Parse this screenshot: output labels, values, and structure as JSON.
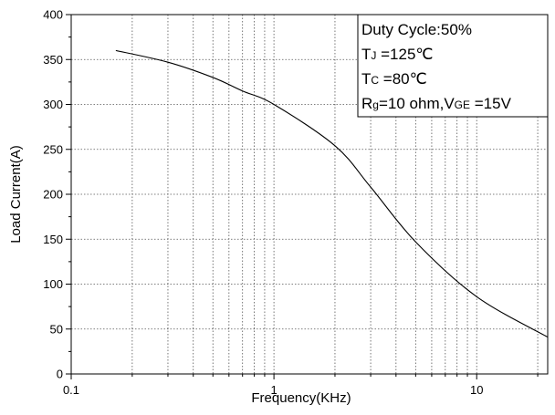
{
  "chart_data": {
    "type": "line",
    "x_label": "Frequency(KHz)",
    "y_label": "Load Current(A)",
    "x": [
      0.166,
      0.3,
      0.5,
      0.7,
      1.0,
      2,
      3,
      5,
      10,
      22.4
    ],
    "series": [
      {
        "color": "#000000",
        "values": [
          360,
          347,
          330,
          315,
          300,
          254,
          208,
          147,
          86,
          41
        ]
      }
    ],
    "xlim": [
      0.1,
      22.4
    ],
    "xscale": "log",
    "xticks": [
      0.1,
      1,
      10
    ],
    "x_minor_ticks": [
      0.2,
      0.3,
      0.4,
      0.5,
      0.6,
      0.7,
      0.8,
      0.9,
      2,
      3,
      4,
      5,
      6,
      7,
      8,
      9,
      20
    ],
    "ylim": [
      0,
      400
    ],
    "yticks": [
      0,
      50,
      100,
      150,
      200,
      250,
      300,
      350,
      400
    ],
    "y_minor_ticks": [
      25,
      75,
      125,
      175,
      225,
      275,
      325,
      375
    ],
    "grid": true,
    "annotation": [
      [
        {
          "text": "Duty Cycle:50%"
        }
      ],
      [
        {
          "text": "T"
        },
        {
          "text": "J",
          "sub": true
        },
        {
          "text": " =125℃"
        }
      ],
      [
        {
          "text": "T"
        },
        {
          "text": "C",
          "sub": true
        },
        {
          "text": " =80℃"
        }
      ],
      [
        {
          "text": "R"
        },
        {
          "text": "g",
          "sub": true
        },
        {
          "text": "=10 ohm,V"
        },
        {
          "text": "GE",
          "sub": true
        },
        {
          "text": " =15V"
        }
      ]
    ]
  }
}
